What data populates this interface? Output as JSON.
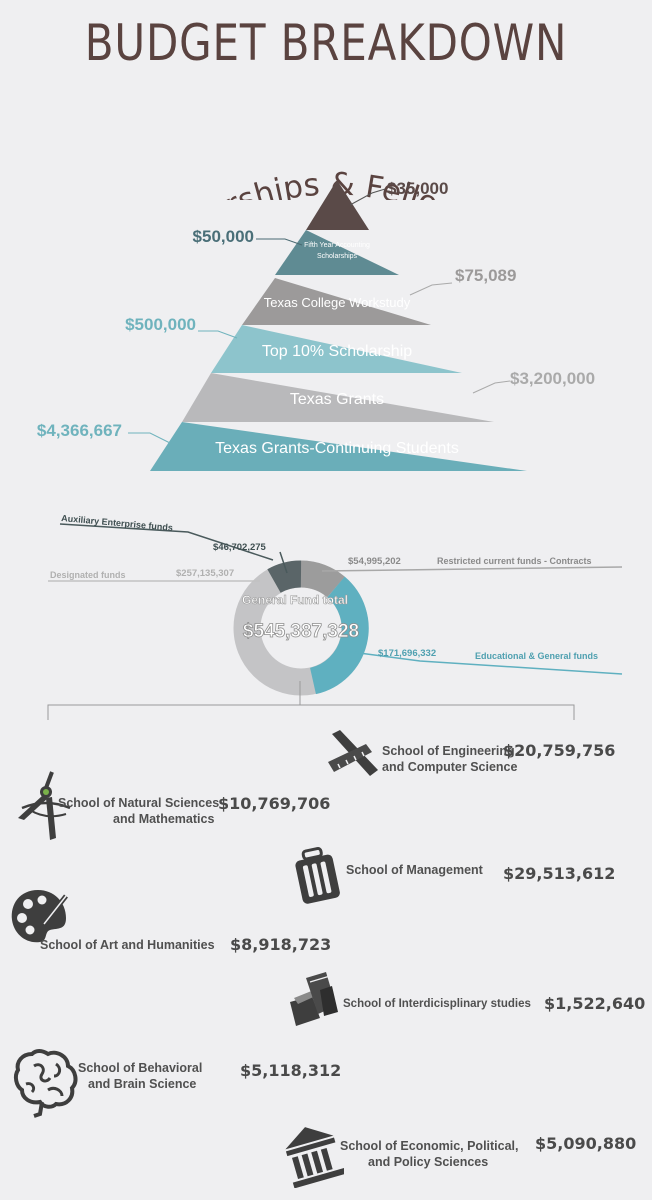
{
  "title": "BUDGET BREAKDOWN",
  "scholarships": {
    "heading": "Scholarships & Fellowships",
    "tiers": [
      {
        "label": "",
        "amount": "$35,000",
        "color": "#5a4a48"
      },
      {
        "label": "Fifth Year Accounting Scholarships",
        "amount": "$50,000",
        "color": "#5f8b93"
      },
      {
        "label": "Texas College Workstudy",
        "amount": "$75,089",
        "color": "#9c9a9a"
      },
      {
        "label": "Top 10% Scholarship",
        "amount": "$500,000",
        "color": "#8dc4cc"
      },
      {
        "label": "Texas Grants",
        "amount": "$3,200,000",
        "color": "#b9b9bb"
      },
      {
        "label": "Texas Grants-Continuing Students",
        "amount": "$4,366,667",
        "color": "#6aaeb9"
      }
    ]
  },
  "funds": {
    "center_label": "General Fund total",
    "center_value": "$545,387,328",
    "segments": [
      {
        "name": "Auxiliary Enterprise funds",
        "value": "$46,702,275",
        "color": "#5a6568"
      },
      {
        "name": "Restricted current funds - Contracts",
        "value": "$54,995,202",
        "color": "#9c9c9c"
      },
      {
        "name": "Educational & General funds",
        "value": "$171,696,332",
        "color": "#5fb0c0"
      },
      {
        "name": "Designated funds",
        "value": "$257,135,307",
        "color": "#c4c4c6"
      }
    ],
    "accent_colors": {
      "dark": "#4a5a5c",
      "teal": "#5fb0c0",
      "gray": "#a8a8a8"
    }
  },
  "schools": [
    {
      "name_lines": [
        "School of Engineering",
        "and Computer Science"
      ],
      "amount": "$20,759,756",
      "icon": "ruler-triangle-icon"
    },
    {
      "name_lines": [
        "School of Natural Sciences",
        "and Mathematics"
      ],
      "amount": "$10,769,706",
      "icon": "compass-atom-icon"
    },
    {
      "name_lines": [
        "School of Management"
      ],
      "amount": "$29,513,612",
      "icon": "briefcase-icon"
    },
    {
      "name_lines": [
        "School of Art and Humanities"
      ],
      "amount": "$8,918,723",
      "icon": "palette-icon"
    },
    {
      "name_lines": [
        "School of Interdicisplinary studies"
      ],
      "amount": "$1,522,640",
      "icon": "books-icon"
    },
    {
      "name_lines": [
        "School of Behavioral",
        "and Brain Science"
      ],
      "amount": "$5,118,312",
      "icon": "brain-icon"
    },
    {
      "name_lines": [
        "School of Economic, Political,",
        "and Policy Sciences"
      ],
      "amount": "$5,090,880",
      "icon": "pillar-building-icon"
    }
  ]
}
